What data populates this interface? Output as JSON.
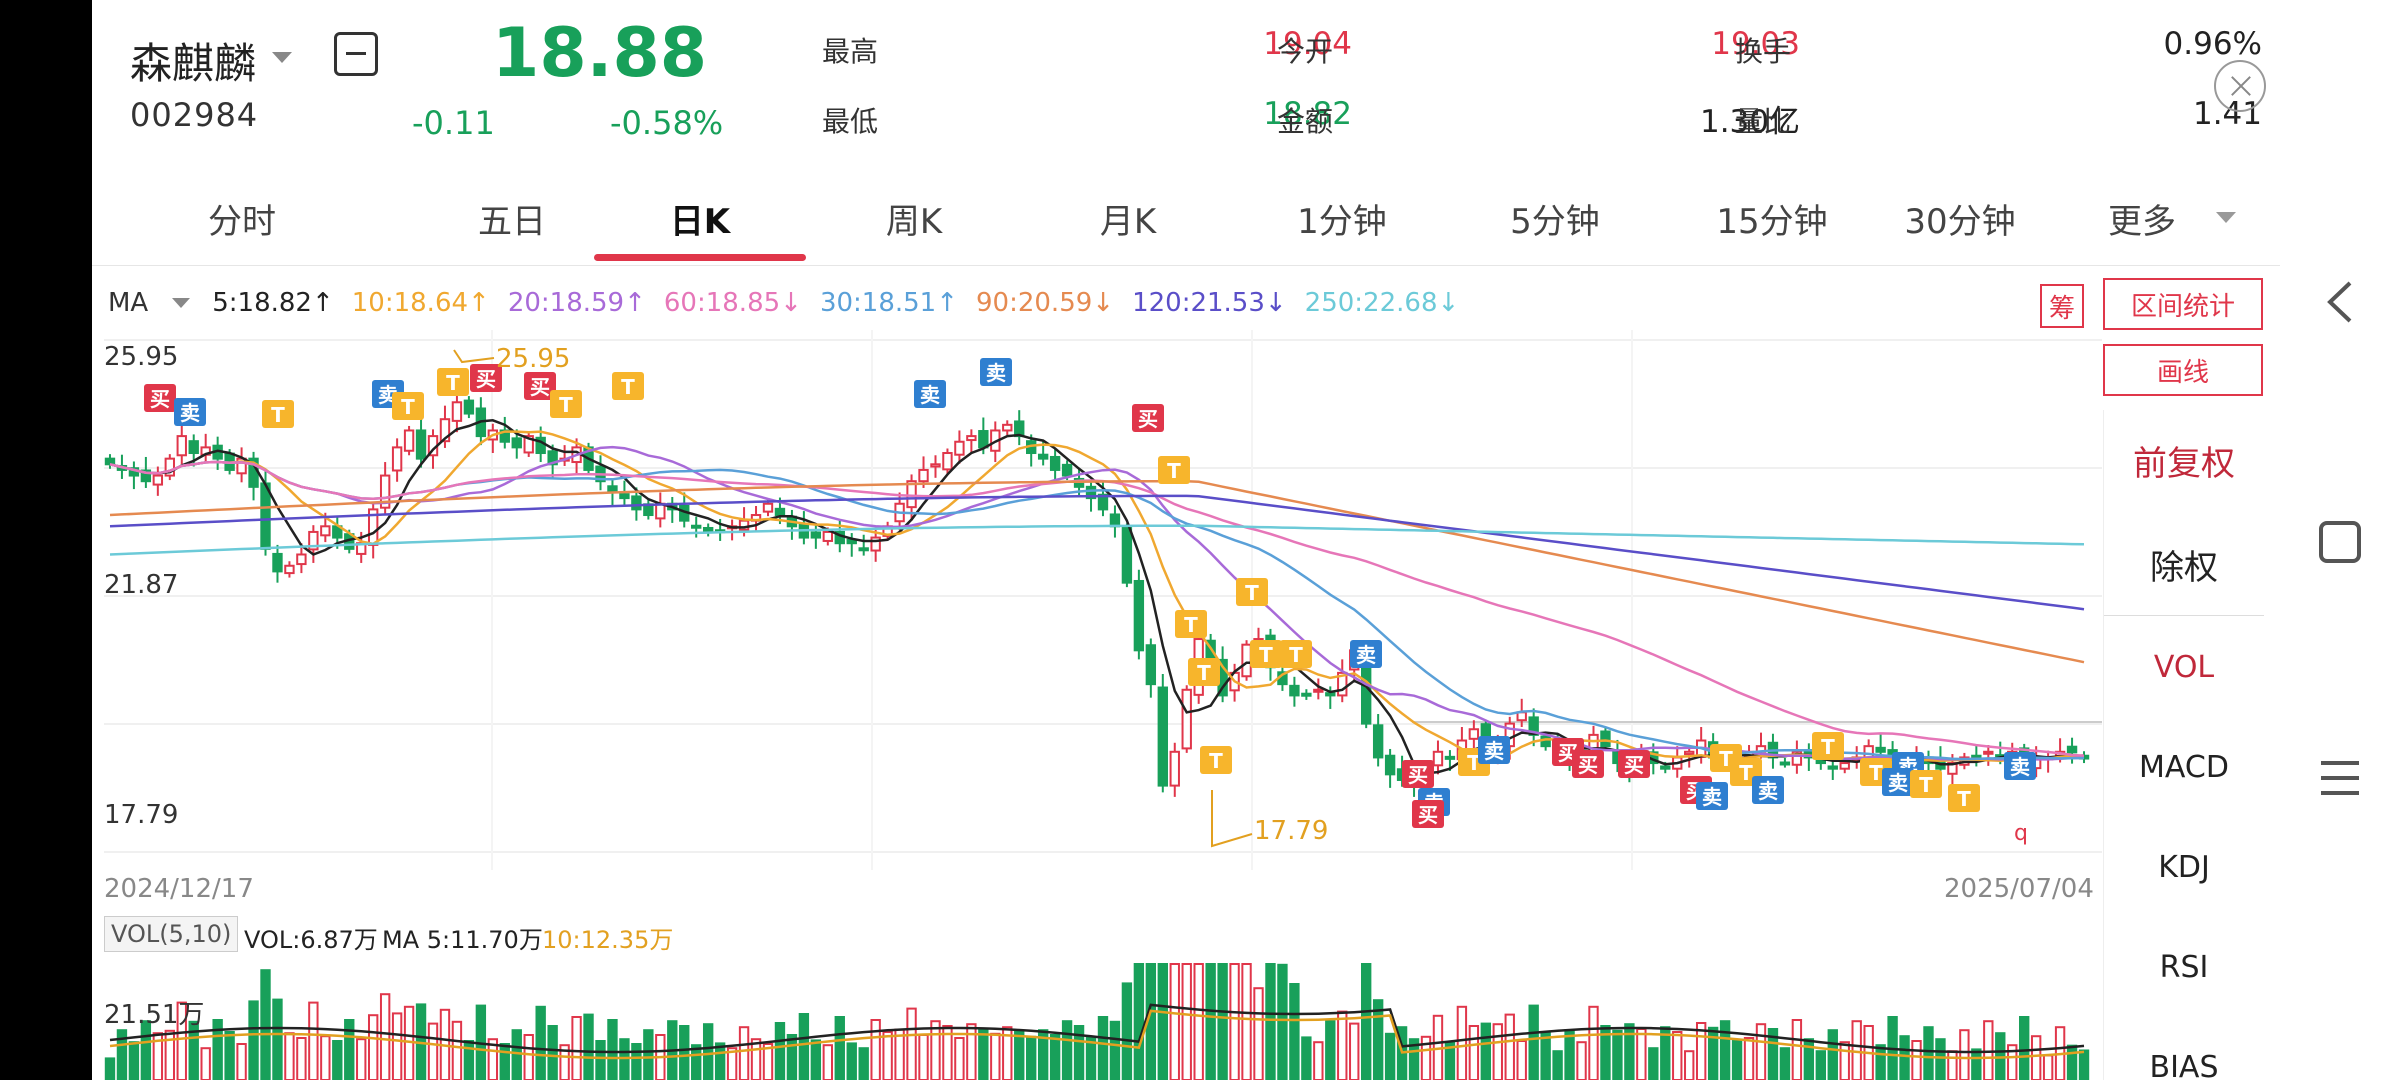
{
  "stock": {
    "name": "森麒麟",
    "code": "002984",
    "price": "18.88",
    "change": "-0.11",
    "change_pct": "-0.58%"
  },
  "quote": {
    "high_label": "最高",
    "high": "19.04",
    "low_label": "最低",
    "low": "18.82",
    "open_label": "今开",
    "open": "19.03",
    "amount_label": "金额",
    "amount": "1.30亿",
    "turnover_label": "换手",
    "turnover": "0.96%",
    "volume_ratio_label": "量比",
    "volume_ratio": "1.41"
  },
  "tabs": [
    "分时",
    "五日",
    "日K",
    "周K",
    "月K",
    "1分钟",
    "5分钟",
    "15分钟",
    "30分钟",
    "更多"
  ],
  "active_tab": "日K",
  "ma_legend": {
    "label": "MA",
    "items": [
      {
        "text": "5:18.82↑",
        "color": "#222222"
      },
      {
        "text": "10:18.64↑",
        "color": "#f0a830"
      },
      {
        "text": "20:18.59↑",
        "color": "#a86ad8"
      },
      {
        "text": "60:18.85↓",
        "color": "#e676b8"
      },
      {
        "text": "30:18.51↑",
        "color": "#5aa0d8"
      },
      {
        "text": "90:20.59↓",
        "color": "#e58a50"
      },
      {
        "text": "120:21.53↓",
        "color": "#5a4ec8"
      },
      {
        "text": "250:22.68↓",
        "color": "#6ccad8"
      }
    ]
  },
  "axis": {
    "price_high": "25.95",
    "price_mid": "21.87",
    "price_low": "17.79",
    "date_start": "2024/12/17",
    "date_end": "2025/07/04",
    "max_marker": "25.95",
    "min_marker": "17.79",
    "vol_max": "21.51万"
  },
  "volume_legend": {
    "tag": "VOL(5,10)",
    "vol": "VOL:6.87万",
    "ma5": "MA 5:11.70万",
    "ma10": "10:12.35万"
  },
  "side": {
    "chou": "筹",
    "range_stats": "区间统计",
    "draw_line": "画线",
    "adjust_forward": "前复权",
    "ex_rights": "除权",
    "indicators": [
      "VOL",
      "MACD",
      "KDJ",
      "RSI",
      "BIAS"
    ],
    "active_indicator": "VOL"
  },
  "markers": {
    "buy": "买",
    "sell": "卖",
    "t": "T",
    "q": "q"
  },
  "colors": {
    "up": "#e0364a",
    "down": "#18a05a",
    "marker_t": "#f7b52c",
    "marker_sell": "#2f7fd0",
    "marker_buy": "#e0364a"
  },
  "chart_data": {
    "type": "candlestick",
    "price_range": [
      17.79,
      25.95
    ],
    "x_range": [
      "2024/12/17",
      "2025/07/04"
    ],
    "ma_current": {
      "MA5": 18.82,
      "MA10": 18.64,
      "MA20": 18.59,
      "MA30": 18.51,
      "MA60": 18.85,
      "MA90": 20.59,
      "MA120": 21.53,
      "MA250": 22.68
    },
    "close_series": [
      24.1,
      24.0,
      23.9,
      23.8,
      23.9,
      24.2,
      24.6,
      24.3,
      24.4,
      24.2,
      24.0,
      24.2,
      23.7,
      22.6,
      22.2,
      22.3,
      22.5,
      22.9,
      23.0,
      22.8,
      22.6,
      22.7,
      23.3,
      23.9,
      24.4,
      24.7,
      24.2,
      24.6,
      24.9,
      25.2,
      25.0,
      24.6,
      24.7,
      24.5,
      24.4,
      24.6,
      24.3,
      24.1,
      24.2,
      24.4,
      24.0,
      23.8,
      23.6,
      23.5,
      23.3,
      23.2,
      23.4,
      23.3,
      23.1,
      23.0,
      22.9,
      22.9,
      23.0,
      23.1,
      23.2,
      23.4,
      23.2,
      23.0,
      22.8,
      22.8,
      22.9,
      22.7,
      22.7,
      22.6,
      22.8,
      23.0,
      23.4,
      23.8,
      24.0,
      24.1,
      24.3,
      24.5,
      24.6,
      24.4,
      24.7,
      24.8,
      24.6,
      24.3,
      24.2,
      24.0,
      23.9,
      23.7,
      23.5,
      23.3,
      23.0,
      22.0,
      20.8,
      20.2,
      18.4,
      19.0,
      20.1,
      21.0,
      20.6,
      20.0,
      20.4,
      20.9,
      21.0,
      20.5,
      20.2,
      20.0,
      20.0,
      20.1,
      20.0,
      20.4,
      20.8,
      19.5,
      18.9,
      18.6,
      18.5,
      18.4,
      18.7,
      19.0,
      18.9,
      19.2,
      19.4,
      19.0,
      19.1,
      19.5,
      19.7,
      19.3,
      19.1,
      19.0,
      18.9,
      19.0,
      19.3,
      19.1,
      18.8,
      18.7,
      18.9,
      18.8,
      18.7,
      18.9,
      19.0,
      19.2,
      18.9,
      18.8,
      18.8,
      19.0,
      19.1,
      18.9,
      18.8,
      19.0,
      18.9,
      18.8,
      18.7,
      18.8,
      18.9,
      19.1,
      19.0,
      18.8,
      18.7,
      18.9,
      18.8,
      18.7,
      18.8,
      18.9,
      18.9,
      19.0,
      18.9,
      19.0,
      18.8,
      18.9,
      18.9,
      19.0,
      18.99,
      18.88
    ]
  }
}
